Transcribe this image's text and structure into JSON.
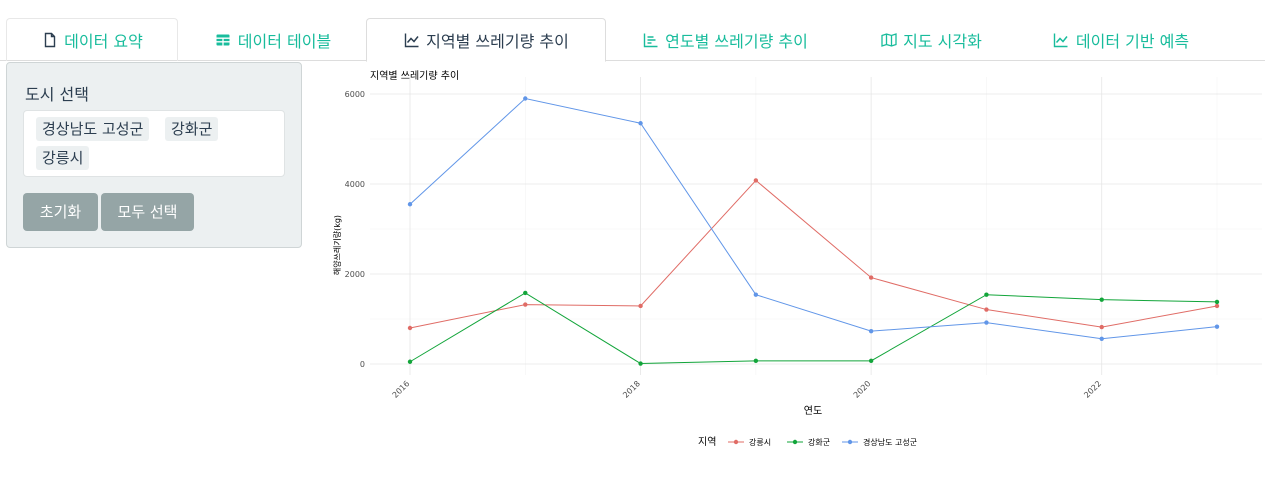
{
  "tabs": [
    {
      "label": "데이터 요약",
      "icon": "file-icon"
    },
    {
      "label": "데이터 테이블",
      "icon": "table-icon"
    },
    {
      "label": "지역별 쓰레기량 추이",
      "icon": "line-chart-icon"
    },
    {
      "label": "연도별 쓰레기량 추이",
      "icon": "bar-chart-icon"
    },
    {
      "label": "지도 시각화",
      "icon": "map-icon"
    },
    {
      "label": "데이터 기반 예측",
      "icon": "line-chart-icon"
    }
  ],
  "sidebar": {
    "label": "도시 선택",
    "selected": [
      "경상남도 고성군",
      "강화군",
      "강릉시"
    ],
    "reset_label": "초기화",
    "select_all_label": "모두 선택"
  },
  "colors": {
    "accent": "#18bc9c",
    "dark": "#2c3e50",
    "button": "#95a5a6",
    "series_gangneung": "#e06c66",
    "series_ganghwa": "#12a53a",
    "series_goseong": "#6196e8"
  },
  "chart_data": {
    "type": "line",
    "title": "지역별 쓰레기량 추이",
    "xlabel": "연도",
    "ylabel": "해양쓰레기량(kg)",
    "x": [
      2016,
      2017,
      2018,
      2019,
      2020,
      2021,
      2022,
      2023
    ],
    "x_ticks": [
      2016,
      2018,
      2020,
      2022
    ],
    "y_ticks": [
      0,
      2000,
      4000,
      6000
    ],
    "xlim": [
      2016,
      2023
    ],
    "ylim": [
      0,
      6000
    ],
    "grid": true,
    "legend_title": "지역",
    "legend_position": "bottom",
    "series": [
      {
        "name": "강릉시",
        "color": "#e06c66",
        "values": [
          800,
          1320,
          1290,
          4080,
          1920,
          1210,
          820,
          1290
        ]
      },
      {
        "name": "강화군",
        "color": "#12a53a",
        "values": [
          50,
          1580,
          10,
          70,
          70,
          1540,
          1430,
          1380
        ]
      },
      {
        "name": "경상남도 고성군",
        "color": "#6196e8",
        "values": [
          3550,
          5900,
          5350,
          1540,
          730,
          920,
          560,
          830
        ]
      }
    ]
  }
}
